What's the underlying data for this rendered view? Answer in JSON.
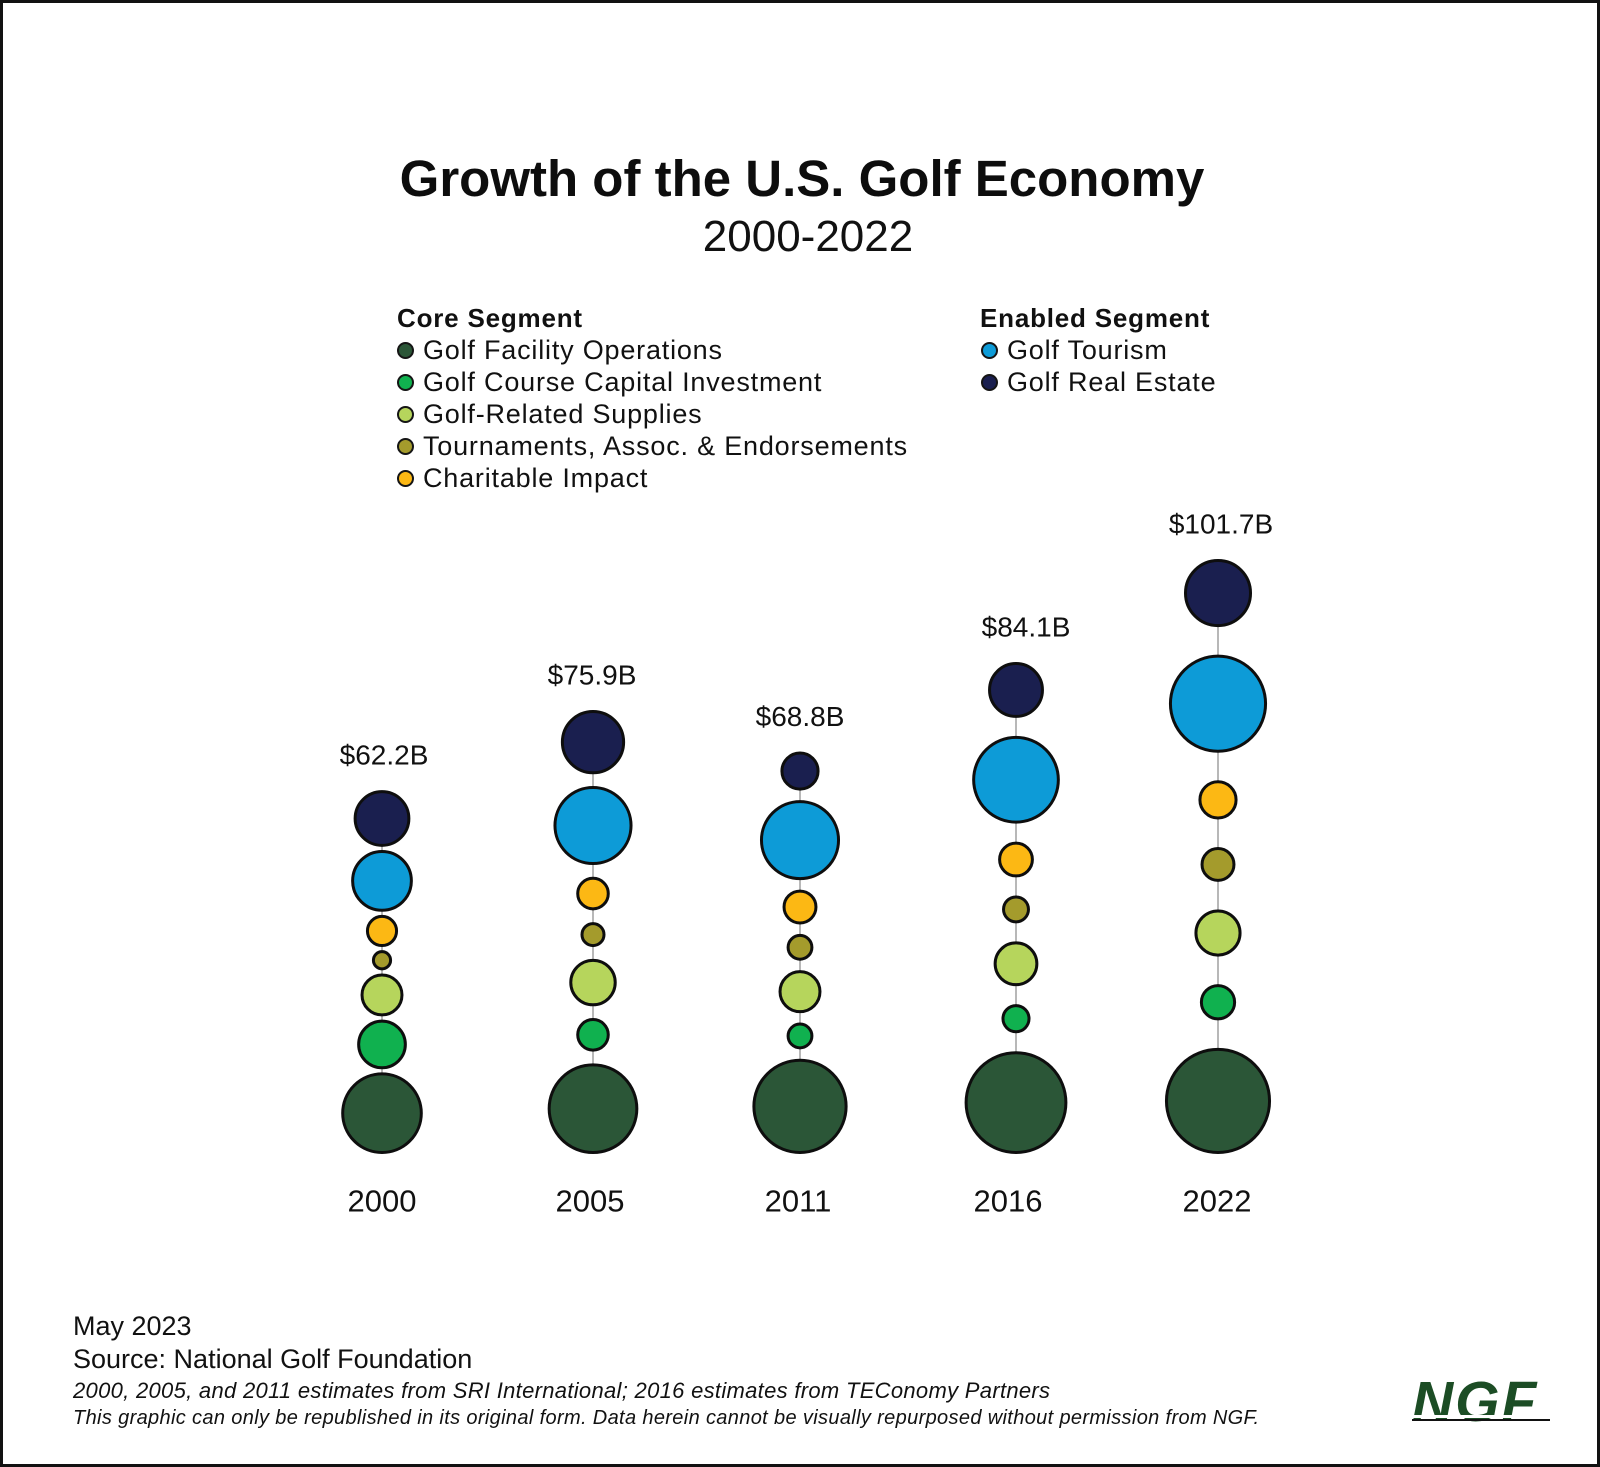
{
  "title": "Growth of the U.S. Golf Economy",
  "subtitle": "2000-2022",
  "legend": {
    "core": {
      "heading": "Core Segment",
      "items": [
        {
          "label": "Golf Facility Operations",
          "color": "#2b5637",
          "icon": "filled-circle"
        },
        {
          "label": "Golf Course Capital Investment",
          "color": "#10b14f",
          "icon": "filled-circle"
        },
        {
          "label": "Golf-Related Supplies",
          "color": "#b6d55c",
          "icon": "filled-circle"
        },
        {
          "label": "Tournaments, Assoc. & Endorsements",
          "color": "#a49b2c",
          "icon": "filled-circle"
        },
        {
          "label": "Charitable Impact",
          "color": "#fcb814",
          "icon": "filled-circle"
        }
      ]
    },
    "enabled": {
      "heading": "Enabled Segment",
      "items": [
        {
          "label": "Golf Tourism",
          "color": "#0d9bd7",
          "icon": "filled-circle"
        },
        {
          "label": "Golf Real Estate",
          "color": "#1a1f4f",
          "icon": "filled-circle"
        }
      ]
    }
  },
  "chart_data": {
    "type": "scatter",
    "subtype": "bubble",
    "title": "Growth of the U.S. Golf Economy",
    "subtitle": "2000-2022",
    "xlabel": "",
    "ylabel": "",
    "units": "$B",
    "categories": [
      "2000",
      "2005",
      "2011",
      "2016",
      "2022"
    ],
    "total_labels": [
      "$62.2B",
      "$75.9B",
      "$68.8B",
      "$84.1B",
      "$101.7B"
    ],
    "totals": [
      62.2,
      75.9,
      68.8,
      84.1,
      101.7
    ],
    "grid": false,
    "legend_position": "top",
    "series": [
      {
        "name": "Golf Facility Operations",
        "segment": "Core Segment",
        "color": "#2b5637",
        "values": [
          21.3,
          26.3,
          29.0,
          33.8,
          36.0
        ]
      },
      {
        "name": "Golf Course Capital Investment",
        "segment": "Core Segment",
        "color": "#10b14f",
        "values": [
          7.9,
          3.6,
          2.3,
          2.7,
          4.2
        ]
      },
      {
        "name": "Golf-Related Supplies",
        "segment": "Core Segment",
        "color": "#b6d55c",
        "values": [
          5.9,
          7.2,
          5.9,
          6.4,
          7.1
        ]
      },
      {
        "name": "Tournaments, Assoc. & Endorsements",
        "segment": "Core Segment",
        "color": "#a49b2c",
        "values": [
          1.3,
          2.0,
          2.3,
          2.5,
          3.9
        ]
      },
      {
        "name": "Charitable Impact",
        "segment": "Core Segment",
        "color": "#fcb814",
        "values": [
          3.3,
          3.6,
          3.9,
          4.1,
          4.9
        ]
      },
      {
        "name": "Golf Tourism",
        "segment": "Enabled Segment",
        "color": "#0d9bd7",
        "values": [
          12.2,
          20.0,
          20.5,
          24.6,
          30.8
        ]
      },
      {
        "name": "Golf Real Estate",
        "segment": "Enabled Segment",
        "color": "#1a1f4f",
        "values": [
          10.3,
          13.2,
          4.9,
          10.0,
          14.8
        ]
      }
    ]
  },
  "footer": {
    "date": "May 2023",
    "source": "Source: National Golf Foundation",
    "note_estimates": "2000, 2005, and 2011 estimates from SRI International; 2016 estimates from TEConomy Partners",
    "note_rights": "This graphic can only be republished in its original form. Data herein cannot be visually repurposed without permission from NGF.",
    "logo_text": "NGF",
    "logo_color": "#1c4d25"
  }
}
